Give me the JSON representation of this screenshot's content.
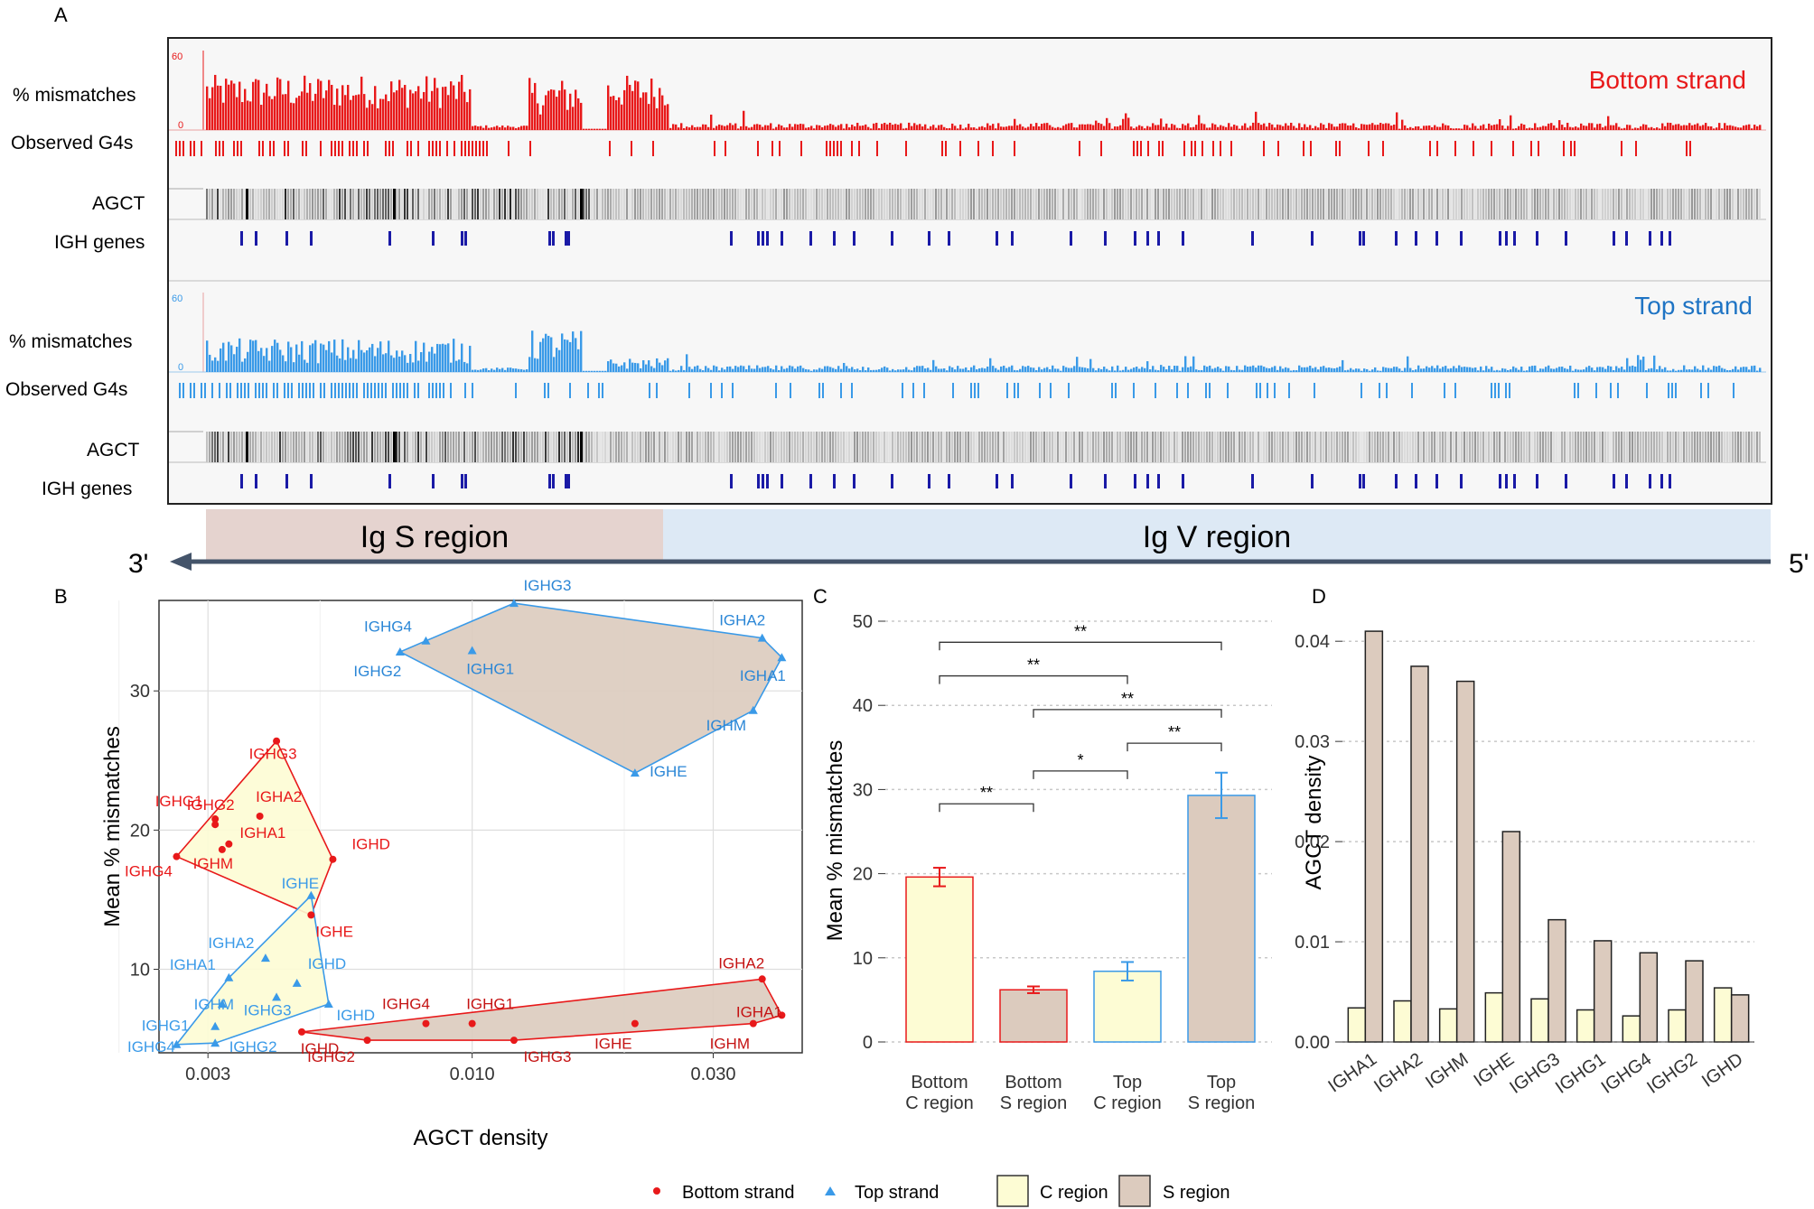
{
  "panels": {
    "A": "A",
    "B": "B",
    "C": "C",
    "D": "D"
  },
  "track": {
    "bottom_label": "Bottom strand",
    "top_label": "Top strand",
    "row_labels": {
      "mismatch": "% mismatches",
      "g4": "Observed G4s",
      "agct": "AGCT",
      "genes": "IGH genes"
    },
    "scale_max": "60",
    "scale_min": "0"
  },
  "regions": {
    "s": "Ig S region",
    "v": "Ig V region",
    "three_prime": "3'",
    "five_prime": "5'"
  },
  "legend": {
    "bottom": "Bottom strand",
    "top": "Top strand",
    "c": "C region",
    "s": "S region"
  },
  "colors": {
    "bottom": "#e8191a",
    "top": "#3a9ae8",
    "c_fill": "#fdfcd4",
    "s_fill": "#dccbbe",
    "gene": "#1a1aa6"
  },
  "chart_data": [
    {
      "panel": "B",
      "type": "scatter",
      "xlabel": "AGCT density",
      "ylabel": "Mean % mismatches",
      "xscale": "log",
      "xlim": [
        0.0024,
        0.045
      ],
      "ylim": [
        4,
        36.5
      ],
      "xticks": [
        "0.003",
        "0.010",
        "0.030"
      ],
      "yticks": [
        "10",
        "20",
        "30"
      ],
      "series": [
        {
          "name": "Bottom strand",
          "region": "C",
          "points": [
            {
              "label": "IGHG3",
              "x": 0.0041,
              "y": 26.4
            },
            {
              "label": "IGHG2",
              "x": 0.0031,
              "y": 20.4
            },
            {
              "label": "IGHA2",
              "x": 0.0038,
              "y": 21.0
            },
            {
              "label": "IGHA1",
              "x": 0.0033,
              "y": 19.0
            },
            {
              "label": "IGHG1",
              "x": 0.0031,
              "y": 20.8
            },
            {
              "label": "IGHG4",
              "x": 0.0026,
              "y": 18.1
            },
            {
              "label": "IGHM",
              "x": 0.0032,
              "y": 18.6
            },
            {
              "label": "IGHD",
              "x": 0.0053,
              "y": 17.9
            },
            {
              "label": "IGHE",
              "x": 0.0048,
              "y": 13.9
            }
          ]
        },
        {
          "name": "Bottom strand",
          "region": "S",
          "points": [
            {
              "label": "IGHD",
              "x": 0.0046,
              "y": 5.5
            },
            {
              "label": "IGHG2",
              "x": 0.0062,
              "y": 4.9
            },
            {
              "label": "IGHG4",
              "x": 0.0081,
              "y": 6.1
            },
            {
              "label": "IGHG1",
              "x": 0.01,
              "y": 6.1
            },
            {
              "label": "IGHG3",
              "x": 0.0121,
              "y": 4.9
            },
            {
              "label": "IGHE",
              "x": 0.021,
              "y": 6.1
            },
            {
              "label": "IGHM",
              "x": 0.036,
              "y": 6.1
            },
            {
              "label": "IGHA2",
              "x": 0.0375,
              "y": 9.3
            },
            {
              "label": "IGHA1",
              "x": 0.041,
              "y": 6.7
            }
          ]
        },
        {
          "name": "Top strand",
          "region": "C",
          "points": [
            {
              "label": "IGHE",
              "x": 0.0048,
              "y": 15.3
            },
            {
              "label": "IGHA2",
              "x": 0.0039,
              "y": 10.8
            },
            {
              "label": "IGHA1",
              "x": 0.0033,
              "y": 9.4
            },
            {
              "label": "IGHD",
              "x": 0.0045,
              "y": 9.0
            },
            {
              "label": "IGHM",
              "x": 0.0032,
              "y": 7.5
            },
            {
              "label": "IGHG3",
              "x": 0.0041,
              "y": 8.0
            },
            {
              "label": "IGHG1",
              "x": 0.0031,
              "y": 5.9
            },
            {
              "label": "IGHG4",
              "x": 0.0026,
              "y": 4.6
            },
            {
              "label": "IGHG2",
              "x": 0.0031,
              "y": 4.7
            },
            {
              "label": "IGHD",
              "x": 0.0052,
              "y": 7.5
            }
          ]
        },
        {
          "name": "Top strand",
          "region": "S",
          "points": [
            {
              "label": "IGHG3",
              "x": 0.0121,
              "y": 36.3
            },
            {
              "label": "IGHG4",
              "x": 0.0081,
              "y": 33.6
            },
            {
              "label": "IGHG2",
              "x": 0.0072,
              "y": 32.8
            },
            {
              "label": "IGHG1",
              "x": 0.01,
              "y": 32.9
            },
            {
              "label": "IGHA2",
              "x": 0.0375,
              "y": 33.8
            },
            {
              "label": "IGHA1",
              "x": 0.041,
              "y": 32.4
            },
            {
              "label": "IGHM",
              "x": 0.036,
              "y": 28.6
            },
            {
              "label": "IGHE",
              "x": 0.021,
              "y": 24.1
            }
          ]
        }
      ]
    },
    {
      "panel": "C",
      "type": "bar",
      "ylabel": "Mean % mismatches",
      "ylim": [
        0,
        50
      ],
      "yticks": [
        "0",
        "10",
        "20",
        "30",
        "40",
        "50"
      ],
      "categories": [
        "Bottom\nC region",
        "Bottom\nS region",
        "Top\nC region",
        "Top\nS region"
      ],
      "category_lines": [
        [
          "Bottom",
          "C region"
        ],
        [
          "Bottom",
          "S region"
        ],
        [
          "Top",
          "C region"
        ],
        [
          "Top",
          "S region"
        ]
      ],
      "values": [
        19.6,
        6.2,
        8.4,
        29.3
      ],
      "errors": [
        1.1,
        0.4,
        1.1,
        2.7
      ],
      "significance": [
        {
          "from": 0,
          "to": 3,
          "label": "**"
        },
        {
          "from": 0,
          "to": 2,
          "label": "**"
        },
        {
          "from": 1,
          "to": 3,
          "label": "**"
        },
        {
          "from": 2,
          "to": 3,
          "label": "**"
        },
        {
          "from": 1,
          "to": 2,
          "label": "*"
        },
        {
          "from": 0,
          "to": 1,
          "label": "**"
        }
      ]
    },
    {
      "panel": "D",
      "type": "bar",
      "ylabel": "AGCT density",
      "ylim": [
        0,
        0.042
      ],
      "yticks": [
        "0.00",
        "0.01",
        "0.02",
        "0.03",
        "0.04"
      ],
      "categories": [
        "IGHA1",
        "IGHA2",
        "IGHM",
        "IGHE",
        "IGHG3",
        "IGHG1",
        "IGHG4",
        "IGHG2",
        "IGHD"
      ],
      "series": [
        {
          "name": "C region",
          "values": [
            0.0034,
            0.0041,
            0.0033,
            0.0049,
            0.0043,
            0.0032,
            0.0026,
            0.0032,
            0.0054
          ]
        },
        {
          "name": "S region",
          "values": [
            0.041,
            0.0375,
            0.036,
            0.021,
            0.0122,
            0.0101,
            0.0089,
            0.0081,
            0.0047
          ]
        }
      ]
    }
  ]
}
